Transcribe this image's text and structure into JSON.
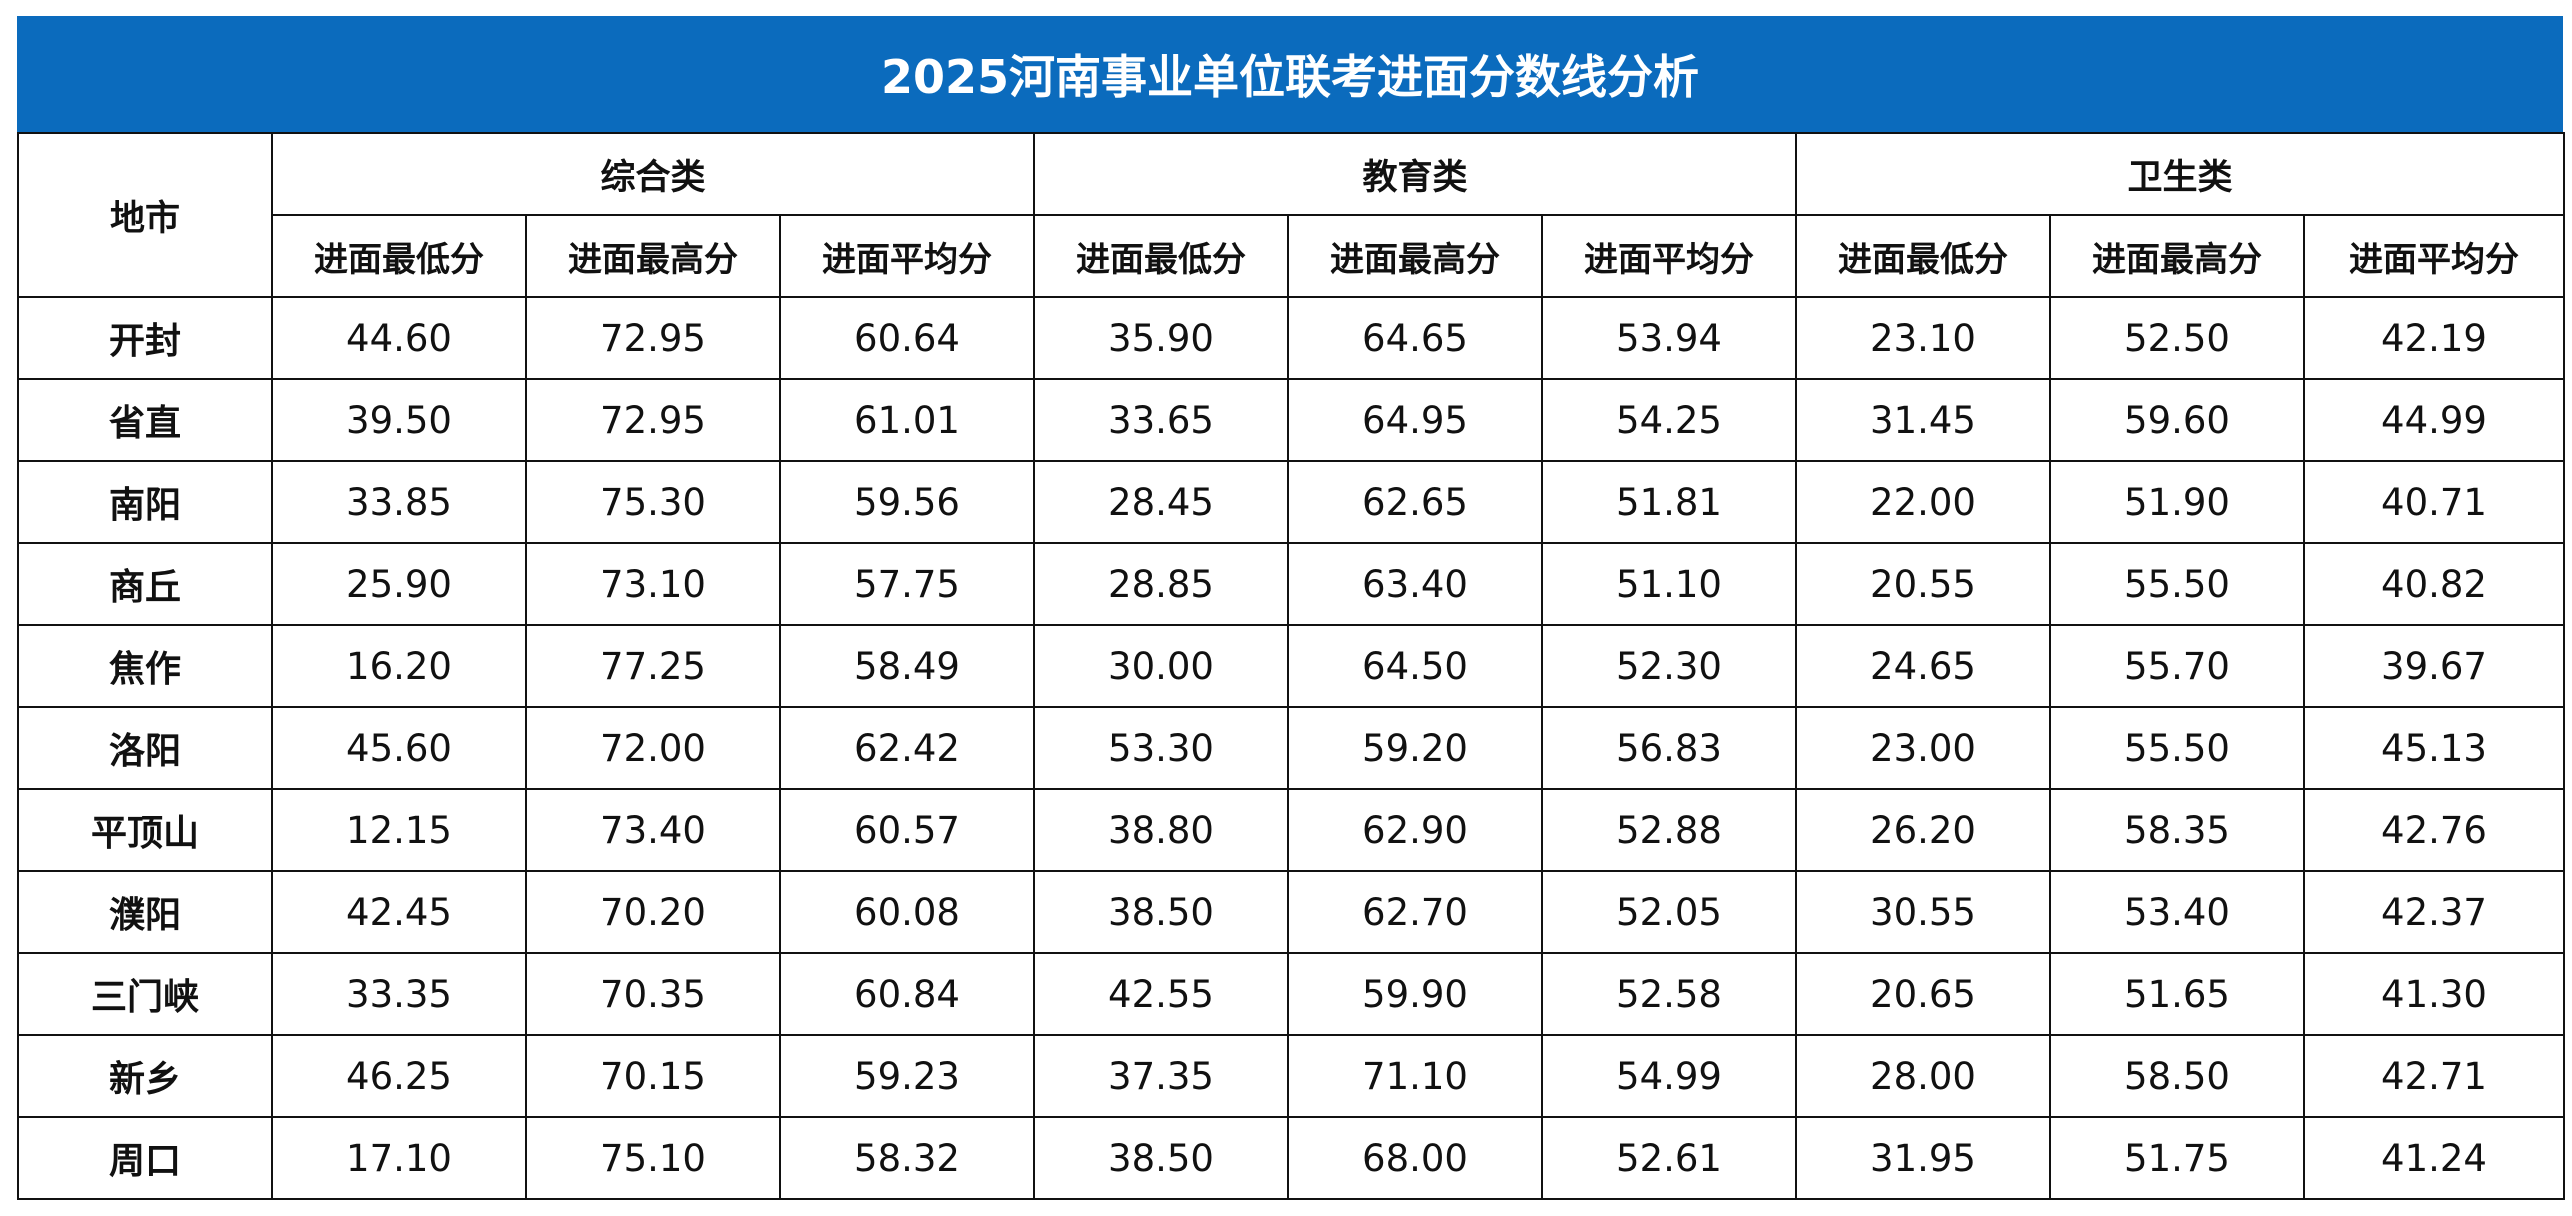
{
  "title": "2025河南事业单位联考进面分数线分析",
  "header": {
    "city_label": "地市",
    "groups": [
      "综合类",
      "教育类",
      "卫生类"
    ],
    "sub_columns": [
      "进面最低分",
      "进面最高分",
      "进面平均分"
    ]
  },
  "rows": [
    {
      "city": "开封",
      "values": [
        "44.60",
        "72.95",
        "60.64",
        "35.90",
        "64.65",
        "53.94",
        "23.10",
        "52.50",
        "42.19"
      ]
    },
    {
      "city": "省直",
      "values": [
        "39.50",
        "72.95",
        "61.01",
        "33.65",
        "64.95",
        "54.25",
        "31.45",
        "59.60",
        "44.99"
      ]
    },
    {
      "city": "南阳",
      "values": [
        "33.85",
        "75.30",
        "59.56",
        "28.45",
        "62.65",
        "51.81",
        "22.00",
        "51.90",
        "40.71"
      ]
    },
    {
      "city": "商丘",
      "values": [
        "25.90",
        "73.10",
        "57.75",
        "28.85",
        "63.40",
        "51.10",
        "20.55",
        "55.50",
        "40.82"
      ]
    },
    {
      "city": "焦作",
      "values": [
        "16.20",
        "77.25",
        "58.49",
        "30.00",
        "64.50",
        "52.30",
        "24.65",
        "55.70",
        "39.67"
      ]
    },
    {
      "city": "洛阳",
      "values": [
        "45.60",
        "72.00",
        "62.42",
        "53.30",
        "59.20",
        "56.83",
        "23.00",
        "55.50",
        "45.13"
      ]
    },
    {
      "city": "平顶山",
      "values": [
        "12.15",
        "73.40",
        "60.57",
        "38.80",
        "62.90",
        "52.88",
        "26.20",
        "58.35",
        "42.76"
      ]
    },
    {
      "city": "濮阳",
      "values": [
        "42.45",
        "70.20",
        "60.08",
        "38.50",
        "62.70",
        "52.05",
        "30.55",
        "53.40",
        "42.37"
      ]
    },
    {
      "city": "三门峡",
      "values": [
        "33.35",
        "70.35",
        "60.84",
        "42.55",
        "59.90",
        "52.58",
        "20.65",
        "51.65",
        "41.30"
      ]
    },
    {
      "city": "新乡",
      "values": [
        "46.25",
        "70.15",
        "59.23",
        "37.35",
        "71.10",
        "54.99",
        "28.00",
        "58.50",
        "42.71"
      ]
    },
    {
      "city": "周口",
      "values": [
        "17.10",
        "75.10",
        "58.32",
        "38.50",
        "68.00",
        "52.61",
        "31.95",
        "51.75",
        "41.24"
      ]
    }
  ],
  "colors": {
    "title_bg": "#0b6bbd",
    "title_text": "#ffffff",
    "grid": "#111111"
  }
}
